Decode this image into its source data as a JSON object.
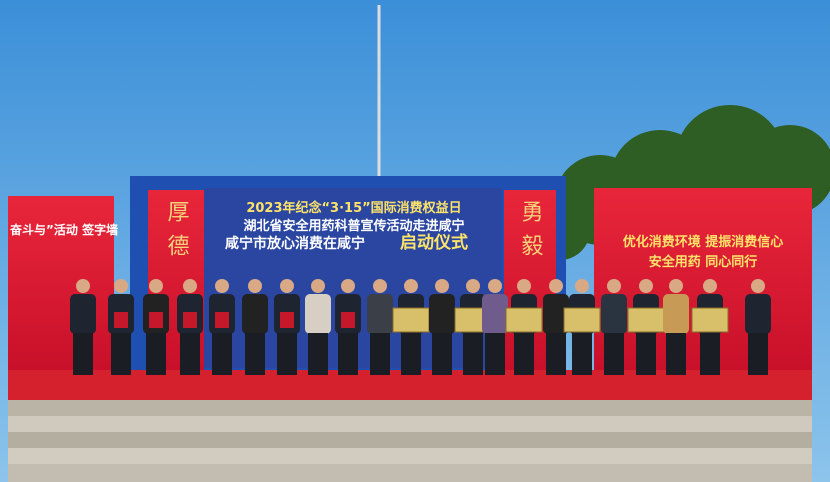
{
  "backdrop": {
    "line1": "2023年纪念“3·15”国际消费权益日",
    "line2": "湖北省安全用药科普宣传活动走进咸宁",
    "line3": "咸宁市放心消费在咸宁",
    "line3_emphasis": "启动仪式"
  },
  "left_pillar": "厚德",
  "right_pillar": "勇毅",
  "left_board": "奋斗与”活动 签字墙",
  "right_board": {
    "line1": "优化消费环境  提振消费信心",
    "line2": "安全用药  同心同行"
  }
}
